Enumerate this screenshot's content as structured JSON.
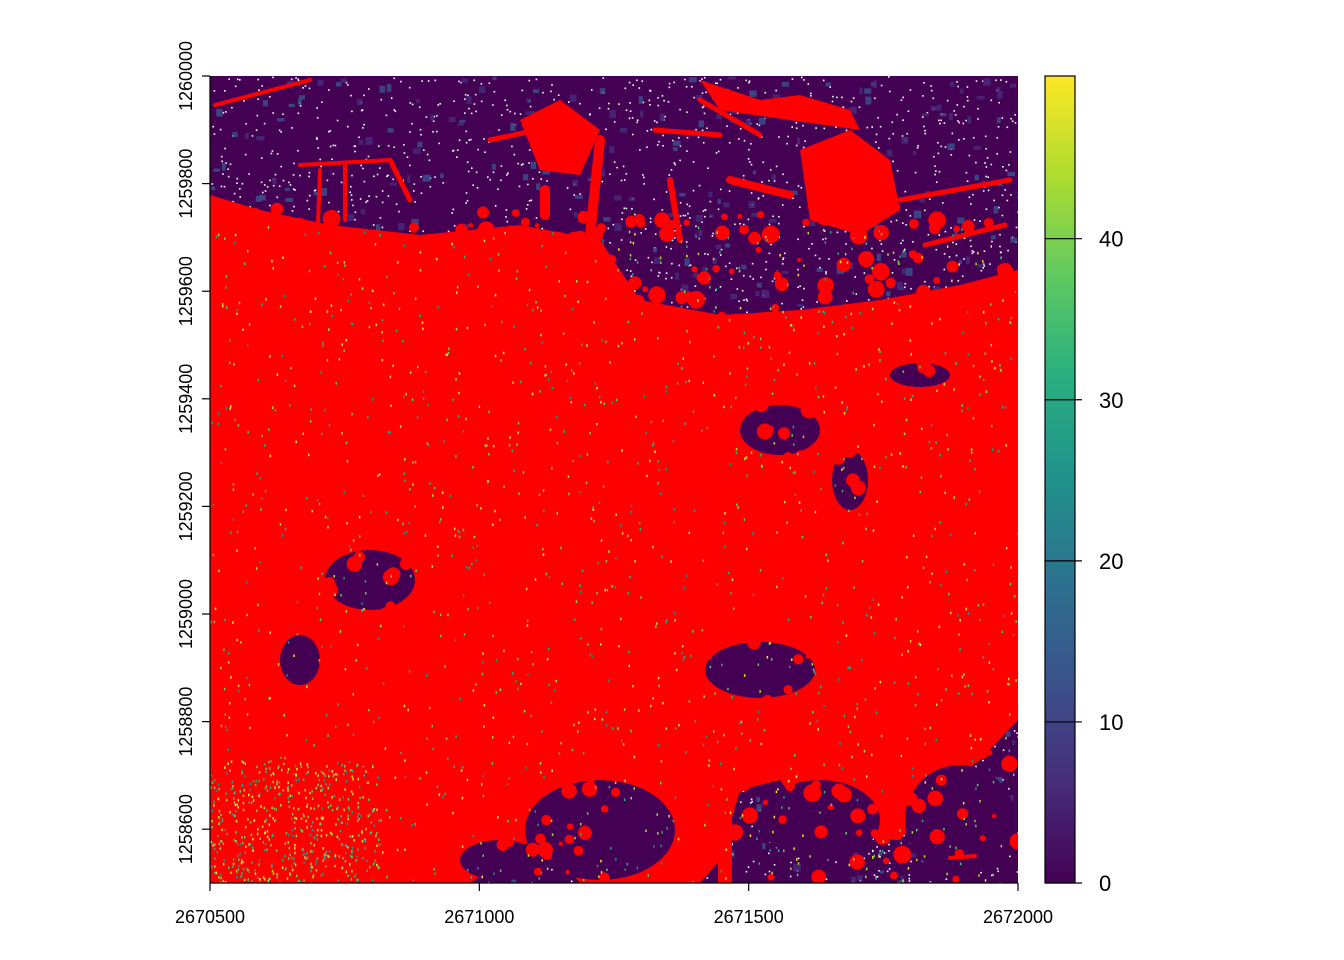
{
  "chart_data": {
    "type": "heatmap",
    "title": "",
    "xlabel": "",
    "ylabel": "",
    "x_range": [
      2670500,
      2672000
    ],
    "y_range": [
      1258500,
      1260000
    ],
    "x_ticks": [
      {
        "value": 2670500,
        "label": "2670500"
      },
      {
        "value": 2671000,
        "label": "2671000"
      },
      {
        "value": 2671500,
        "label": "2671500"
      },
      {
        "value": 2672000,
        "label": "2672000"
      }
    ],
    "y_ticks": [
      {
        "value": 1258600,
        "label": "1258600"
      },
      {
        "value": 1258800,
        "label": "1258800"
      },
      {
        "value": 1259000,
        "label": "1259000"
      },
      {
        "value": 1259200,
        "label": "1259200"
      },
      {
        "value": 1259400,
        "label": "1259400"
      },
      {
        "value": 1259600,
        "label": "1259600"
      },
      {
        "value": 1259800,
        "label": "1259800"
      },
      {
        "value": 1260000,
        "label": "1260000"
      }
    ],
    "colorbar": {
      "range": [
        0,
        50
      ],
      "ticks": [
        {
          "value": 0,
          "label": "0"
        },
        {
          "value": 10,
          "label": "10"
        },
        {
          "value": 20,
          "label": "20"
        },
        {
          "value": 30,
          "label": "30"
        },
        {
          "value": 40,
          "label": "40"
        }
      ],
      "colormap": "viridis",
      "stops": [
        "#440154",
        "#472d7b",
        "#3b528b",
        "#2c728e",
        "#21918c",
        "#28ae80",
        "#5ec962",
        "#addc30",
        "#fde725"
      ]
    },
    "overlay_color": "#ff0000",
    "background_color": "#440154",
    "nodata_color": "#ffffff",
    "grid": false,
    "legend": "right"
  }
}
